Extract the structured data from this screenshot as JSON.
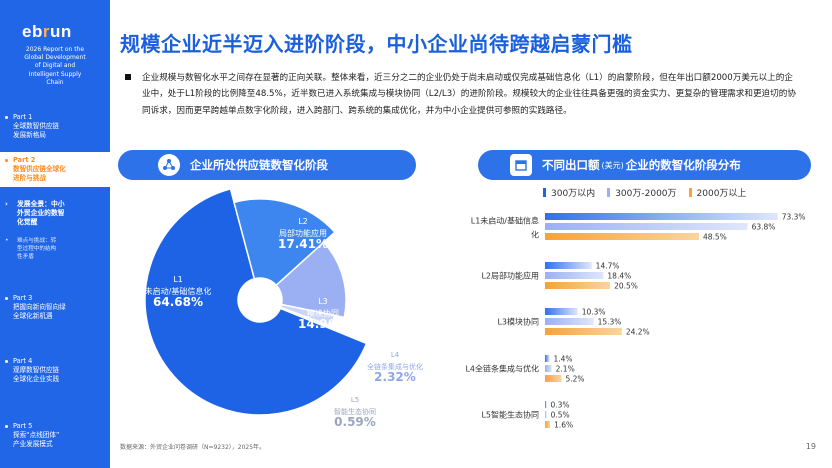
{
  "sidebar": {
    "logo_main": "eb",
    "logo_accent": "r",
    "logo_end": "un",
    "report_title": [
      "2026 Report on the",
      "Global Development",
      "of Digital and",
      "Intelligent Supply",
      "Chain"
    ],
    "nav": [
      {
        "part": "Part 1",
        "lines": [
          "全球数智供应链",
          "发展新格局"
        ]
      },
      {
        "part": "Part 2",
        "lines": [
          "数智供应链全球化",
          "进阶与挑战"
        ]
      },
      {
        "part": "Part 3",
        "lines": [
          "把握向新向智向绿",
          "全球化新机遇"
        ]
      },
      {
        "part": "Part 4",
        "lines": [
          "观摩数智供应链",
          "全球化企业实践"
        ]
      },
      {
        "part": "Part 5",
        "lines": [
          "探索“点线团体”",
          "产业发展模式"
        ]
      }
    ],
    "sub_active": [
      "发展全景：中小",
      "外贸企业的数智",
      "化觉醒"
    ],
    "sub_next": [
      "难点与挑战：转",
      "型过程中的结构",
      "性矛盾"
    ]
  },
  "header": {
    "title": "规模企业近半迈入进阶阶段，中小企业尚待跨越启蒙门槛"
  },
  "intro": {
    "text": "企业规模与数智化水平之间存在显著的正向关联。整体来看，近三分之二的企业仍处于尚未启动或仅完成基础信息化（L1）的启蒙阶段，但在年出口额2000万美元以上的企业中，处于L1阶段的比例降至48.5%，近半数已进入系统集成与模块协同（L2/L3）的进阶阶段。规模较大的企业往往具备更强的资金实力、更复杂的管理需求和更迫切的协同诉求，因而更早跨越单点数字化阶段，进入跨部门、跨系统的集成优化，并为中小企业提供可参照的实践路径。"
  },
  "left_chart_title": "企业所处供应链数智化阶段",
  "right_chart_title_pre": "不同出口额",
  "right_chart_title_unit": "(美元)",
  "right_chart_title_post": "企业的数智化阶段分布",
  "colors": {
    "blue_dark": "#1e63e6",
    "blue_mid": "#3d86f0",
    "blue_light": "#9bb0f2",
    "blue_pale": "#c9d6f8",
    "orange": "#f7a23a",
    "sidebar": "#2266e8"
  },
  "chart_data": [
    {
      "type": "pie",
      "title": "企业所处供应链数智化阶段",
      "slices": [
        {
          "name": "L1",
          "sub": "未启动/基础信息化",
          "value": 64.68,
          "label": "64.68%"
        },
        {
          "name": "L2",
          "sub": "局部功能应用",
          "value": 17.41,
          "label": "17.41%"
        },
        {
          "name": "L3",
          "sub": "模块协同",
          "value": 14.96,
          "label": "14.96%"
        },
        {
          "name": "L4",
          "sub": "全链条集成与优化",
          "value": 2.32,
          "label": "2.32%"
        },
        {
          "name": "L5",
          "sub": "智能生态协同",
          "value": 0.59,
          "label": "0.59%"
        }
      ]
    },
    {
      "type": "bar",
      "title": "不同出口额(美元)企业的数智化阶段分布",
      "categories": [
        [
          "L1未启动/基础信息",
          "化"
        ],
        [
          "L2局部功能应用"
        ],
        [
          "L3模块协同"
        ],
        [
          "L4全链条集成与优化"
        ],
        [
          "L5智能生态协同"
        ]
      ],
      "series": [
        {
          "name": "300万以内",
          "values": [
            73.3,
            14.7,
            10.3,
            1.4,
            0.3
          ],
          "labels": [
            "73.3%",
            "14.7%",
            "10.3%",
            "1.4%",
            "0.3%"
          ]
        },
        {
          "name": "300万-2000万",
          "values": [
            63.8,
            18.4,
            15.3,
            2.1,
            0.5
          ],
          "labels": [
            "63.8%",
            "18.4%",
            "15.3%",
            "2.1%",
            "0.5%"
          ]
        },
        {
          "name": "2000万以上",
          "values": [
            48.5,
            20.5,
            24.2,
            5.2,
            1.6
          ],
          "labels": [
            "48.5%",
            "20.5%",
            "24.2%",
            "5.2%",
            "1.6%"
          ]
        }
      ],
      "xlim": [
        0,
        80
      ],
      "legend": "top"
    }
  ],
  "footer": {
    "source": "数据来源：外贸企业问卷调研（N=9232），2025年。",
    "page": "19"
  }
}
